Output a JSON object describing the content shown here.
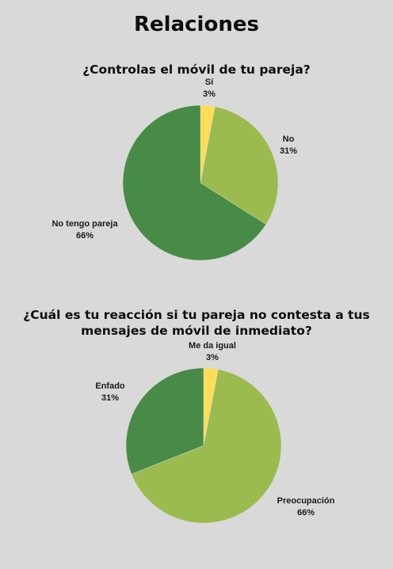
{
  "page": {
    "title": "Relaciones"
  },
  "colors": {
    "yellow": "#ffdd57",
    "light_green": "#9bbb4f",
    "dark_green": "#478b47"
  },
  "chart_data": [
    {
      "type": "pie",
      "title": "¿Controlas el móvil de tu pareja?",
      "slices": [
        {
          "label": "Sí",
          "value": 3,
          "value_label": "3%",
          "color": "#ffdd57"
        },
        {
          "label": "No",
          "value": 31,
          "value_label": "31%",
          "color": "#9bbb4f"
        },
        {
          "label": "No tengo pareja",
          "value": 66,
          "value_label": "66%",
          "color": "#478b47"
        }
      ]
    },
    {
      "type": "pie",
      "title_lines": [
        "¿Cuál es tu reacción si tu pareja no contesta a tus",
        "mensajes de móvil de inmediato?"
      ],
      "slices": [
        {
          "label": "Me da igual",
          "value": 3,
          "value_label": "3%",
          "color": "#ffdd57"
        },
        {
          "label": "Preocupación",
          "value": 66,
          "value_label": "66%",
          "color": "#9bbb4f"
        },
        {
          "label": "Enfado",
          "value": 31,
          "value_label": "31%",
          "color": "#478b47"
        }
      ]
    }
  ]
}
